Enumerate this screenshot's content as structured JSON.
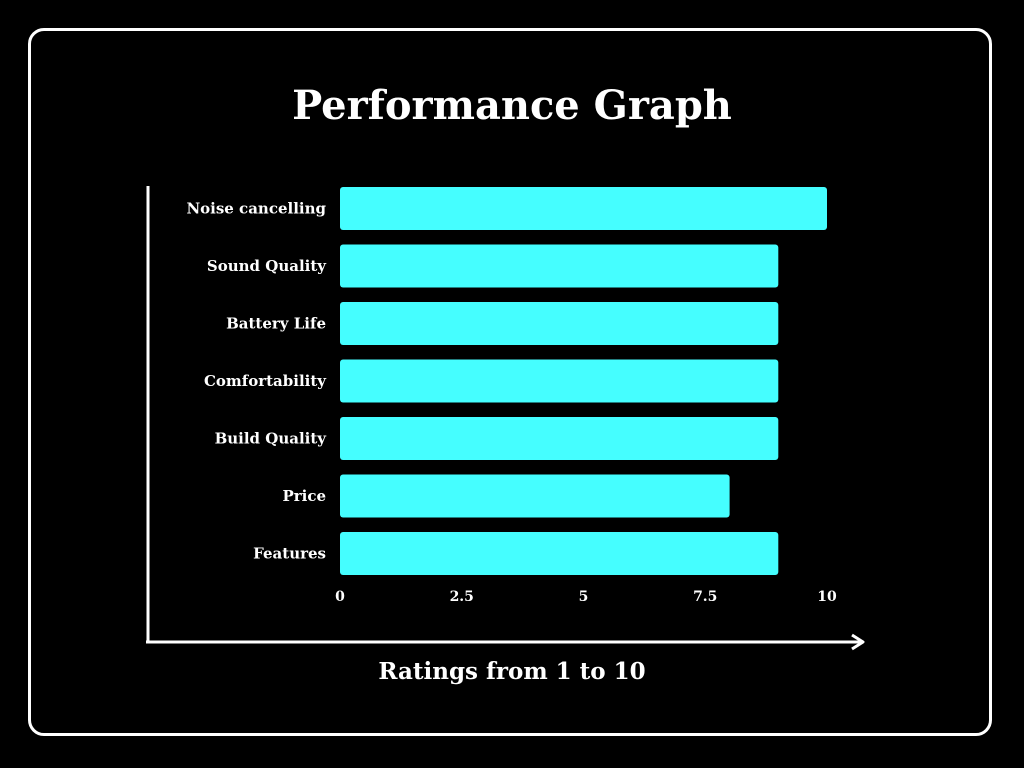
{
  "chart_data": {
    "type": "bar",
    "orientation": "horizontal",
    "title": "Performance Graph",
    "xlabel": "Ratings from 1 to 10",
    "ylabel": "",
    "categories": [
      "Noise cancelling",
      "Sound Quality",
      "Battery Life",
      "Comfortability",
      "Build Quality",
      "Price",
      "Features"
    ],
    "values": [
      10,
      9,
      9,
      9,
      9,
      8,
      9
    ],
    "xlim": [
      0,
      10
    ],
    "xticks": [
      "0",
      "2.5",
      "5",
      "7.5",
      "10"
    ],
    "grid": false,
    "bar_color": "#45FEFF"
  },
  "colors": {
    "background": "#000000",
    "text": "#FFFFFF",
    "bar": "#45FEFF"
  }
}
